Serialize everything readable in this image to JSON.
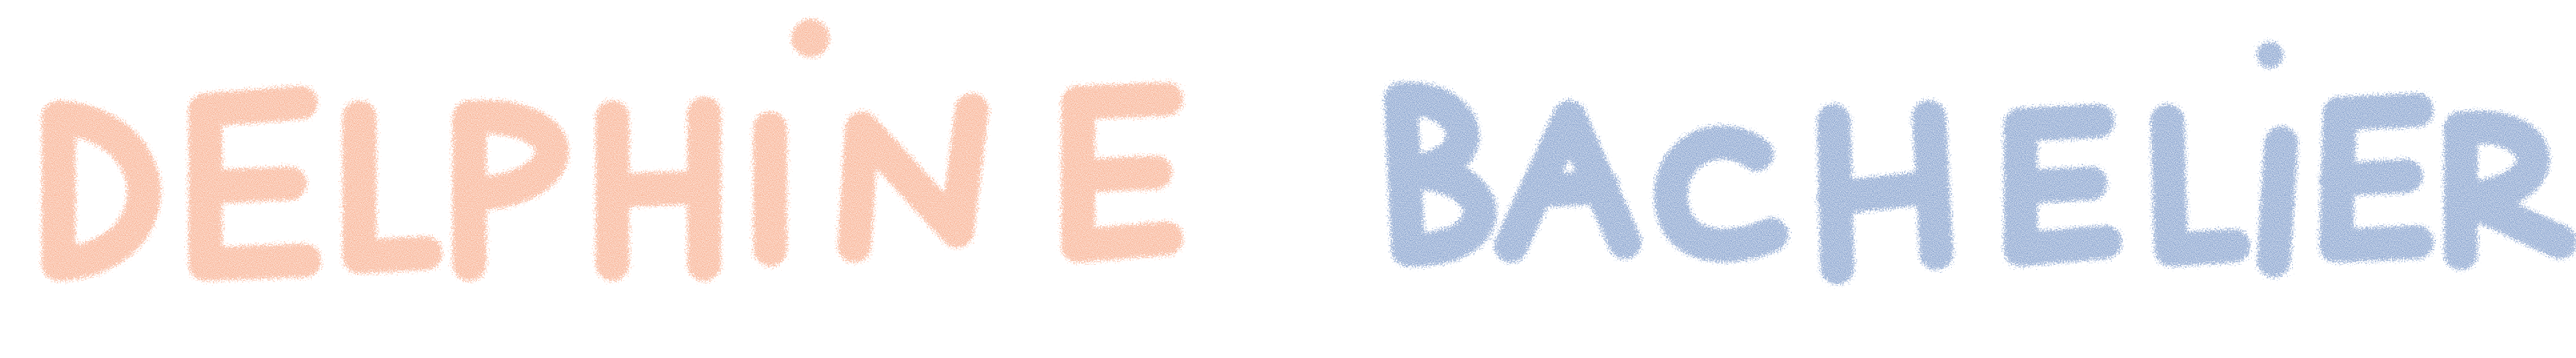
{
  "logo": {
    "first_name": "DELPHINE",
    "last_name": "BACHELIER",
    "first_color": "#F58A5C",
    "last_color": "#4A72B5"
  }
}
